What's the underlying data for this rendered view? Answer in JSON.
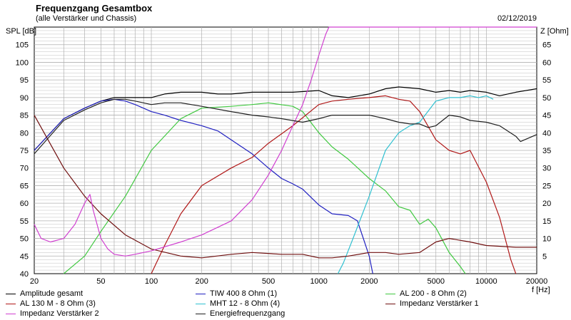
{
  "header": {
    "title": "Frequenzgang Gesamtbox",
    "subtitle": "(alle Verstärker und Chassis)",
    "date": "02/12/2019"
  },
  "colors": {
    "amplitude_gesamt": "#000000",
    "tiw400": "#2020c0",
    "al200": "#40c840",
    "al130": "#b01818",
    "mht12": "#30c0d0",
    "impedanz1": "#701010",
    "impedanz2": "#d040d0",
    "energie": "#202020",
    "grid": "#b0b0b0"
  },
  "chart_data": {
    "type": "line",
    "xscale": "log",
    "xlim": [
      20,
      20000
    ],
    "ylim": [
      40,
      110
    ],
    "y2lim": [
      0,
      70
    ],
    "ylabel": "SPL [dB]",
    "y2label": "Z [Ohm]",
    "xlabel": "f [Hz]",
    "xticks": [
      20,
      50,
      100,
      200,
      500,
      1000,
      2000,
      5000,
      10000,
      20000
    ],
    "xtick_labels": [
      "20",
      "50",
      "100",
      "200",
      "500",
      "1000",
      "2000",
      "5000",
      "10000",
      "20000"
    ],
    "yticks": [
      40,
      45,
      50,
      55,
      60,
      65,
      70,
      75,
      80,
      85,
      90,
      95,
      100,
      105
    ],
    "y2ticks": [
      5,
      10,
      15,
      20,
      25,
      30,
      35,
      40,
      45,
      50,
      55,
      60,
      65
    ],
    "grid": true,
    "legend_position": "bottom",
    "series": [
      {
        "name": "Amplitude gesamt",
        "axis": "left",
        "color_key": "amplitude_gesamt",
        "x": [
          20,
          30,
          40,
          50,
          60,
          70,
          80,
          100,
          120,
          150,
          200,
          250,
          300,
          400,
          500,
          700,
          1000,
          1200,
          1500,
          2000,
          2500,
          3000,
          4000,
          5000,
          6000,
          7000,
          8000,
          10000,
          12000,
          15000,
          20000
        ],
        "y": [
          75,
          84,
          87,
          89,
          90,
          90,
          90,
          90,
          91,
          91.5,
          91.5,
          91,
          91,
          91.5,
          91.5,
          91.5,
          92,
          90.5,
          90,
          91,
          92.5,
          93,
          92.5,
          91.5,
          92,
          91.5,
          92,
          91.5,
          90.5,
          91.5,
          92.5
        ]
      },
      {
        "name": "TIW 400 8 Ohm (1)",
        "axis": "left",
        "color_key": "tiw400",
        "x": [
          20,
          30,
          40,
          50,
          60,
          70,
          80,
          100,
          120,
          150,
          200,
          250,
          300,
          400,
          500,
          600,
          700,
          800,
          1000,
          1200,
          1500,
          1700,
          2000,
          2100
        ],
        "y": [
          75,
          84,
          87,
          89,
          89.5,
          89,
          88,
          86,
          85,
          83.5,
          82,
          80.5,
          78,
          74,
          70,
          67,
          65.5,
          64,
          59.5,
          57,
          56.5,
          55,
          45,
          40
        ]
      },
      {
        "name": "AL 200 - 8 Ohm (2)",
        "axis": "left",
        "color_key": "al200",
        "x": [
          30,
          40,
          50,
          70,
          100,
          150,
          200,
          300,
          400,
          500,
          700,
          800,
          1000,
          1200,
          1500,
          2000,
          2500,
          3000,
          3500,
          4000,
          4500,
          5000,
          6000,
          7000,
          7500
        ],
        "y": [
          40,
          45,
          52,
          62,
          75,
          84,
          87,
          87.5,
          88,
          88.5,
          87.5,
          86,
          80,
          76,
          72.5,
          67,
          63.5,
          59,
          58,
          54,
          55.5,
          53,
          46,
          42,
          40
        ]
      },
      {
        "name": "AL 130 M - 8 Ohm (3)",
        "axis": "left",
        "color_key": "al130",
        "x": [
          100,
          120,
          150,
          200,
          300,
          400,
          500,
          700,
          1000,
          1200,
          1500,
          2000,
          2500,
          3000,
          3500,
          4000,
          5000,
          6000,
          7000,
          8000,
          10000,
          12000,
          14000,
          15000
        ],
        "y": [
          40,
          48,
          57,
          65,
          70,
          73,
          77,
          82,
          88,
          89,
          89.5,
          90,
          90.5,
          89.5,
          89,
          86,
          78,
          75,
          74,
          75,
          66,
          56,
          44,
          40
        ]
      },
      {
        "name": "MHT 12 - 8 Ohm (4)",
        "axis": "left",
        "color_key": "mht12",
        "x": [
          1300,
          1400,
          1600,
          2000,
          2500,
          3000,
          3500,
          4000,
          5000,
          6000,
          7000,
          8000,
          9000,
          10000,
          11000
        ],
        "y": [
          40,
          43,
          50,
          62,
          75,
          80,
          82,
          83,
          89,
          90,
          90,
          90.5,
          90,
          90.5,
          89.5
        ]
      },
      {
        "name": "Impedanz Verstärker 1",
        "axis": "right",
        "color_key": "impedanz1",
        "x": [
          20,
          30,
          40,
          50,
          70,
          100,
          150,
          200,
          300,
          400,
          600,
          800,
          1000,
          1200,
          1500,
          2000,
          2500,
          3000,
          4000,
          5000,
          6000,
          8000,
          10000,
          15000,
          20000
        ],
        "y": [
          45,
          30,
          22,
          17,
          11,
          7,
          5,
          4.5,
          5.5,
          6,
          5.5,
          5.5,
          4.5,
          4.5,
          5,
          6,
          6,
          5.5,
          6,
          9,
          10,
          9,
          8,
          7.5,
          7.5
        ]
      },
      {
        "name": "Impedanz Verstärker 2",
        "axis": "right",
        "color_key": "impedanz2",
        "x": [
          20,
          22,
          25,
          30,
          35,
          40,
          43,
          45,
          50,
          55,
          60,
          70,
          80,
          100,
          150,
          200,
          300,
          400,
          500,
          600,
          700,
          800,
          900,
          1000,
          1100,
          1150,
          1200,
          20000
        ],
        "y": [
          14,
          10,
          9,
          10,
          14,
          20,
          22.5,
          18,
          10,
          7,
          5.5,
          5,
          5.5,
          6.5,
          9,
          11,
          15,
          21,
          28,
          35,
          42,
          48,
          55,
          62,
          68,
          70,
          70,
          70
        ]
      },
      {
        "name": "Energiefrequenzgang",
        "axis": "left",
        "color_key": "energie",
        "x": [
          20,
          30,
          40,
          50,
          60,
          70,
          80,
          100,
          120,
          150,
          200,
          300,
          400,
          500,
          600,
          800,
          1000,
          1200,
          1500,
          2000,
          2500,
          3000,
          3500,
          4000,
          4500,
          5000,
          6000,
          7000,
          8000,
          10000,
          12000,
          15000,
          16000,
          20000
        ],
        "y": [
          74,
          83.5,
          86.5,
          88.5,
          89.5,
          89.5,
          89,
          88,
          88.5,
          88.5,
          87.5,
          86,
          85,
          84.5,
          84,
          83,
          84,
          85,
          85,
          85,
          84,
          83,
          82.5,
          82.5,
          81.5,
          82,
          85,
          84.5,
          83.5,
          83,
          82,
          79,
          77.5,
          79.5
        ]
      }
    ]
  }
}
